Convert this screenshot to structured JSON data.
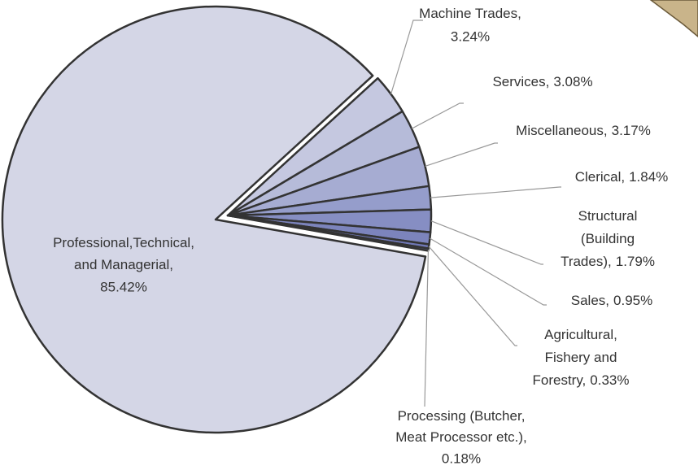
{
  "chart_data": {
    "type": "pie",
    "categories": [
      [
        "Professional,Technical,",
        "and Managerial,"
      ],
      [
        "Machine Trades,"
      ],
      [
        "Services,"
      ],
      [
        "Miscellaneous,"
      ],
      [
        "Clerical,"
      ],
      [
        "Structural",
        "(Building",
        "Trades),"
      ],
      [
        "Sales,"
      ],
      [
        "Agricultural,",
        "Fishery and",
        "Forestry,"
      ],
      [
        "Processing (Butcher,",
        "Meat Processor etc.),"
      ]
    ],
    "values": [
      85.42,
      3.24,
      3.08,
      3.17,
      1.84,
      1.79,
      0.95,
      0.33,
      0.18
    ],
    "value_labels": [
      "85.42%",
      "3.24%",
      "3.08%",
      "3.17%",
      "1.84%",
      "1.79%",
      "0.95%",
      "0.33%",
      "0.18%"
    ],
    "colors": [
      "#d4d6e6",
      "#c5c8e0",
      "#b6bbd9",
      "#a6acd2",
      "#959dcb",
      "#868ec3",
      "#7c84bc",
      "#7078b5",
      "#6a72b0"
    ]
  }
}
